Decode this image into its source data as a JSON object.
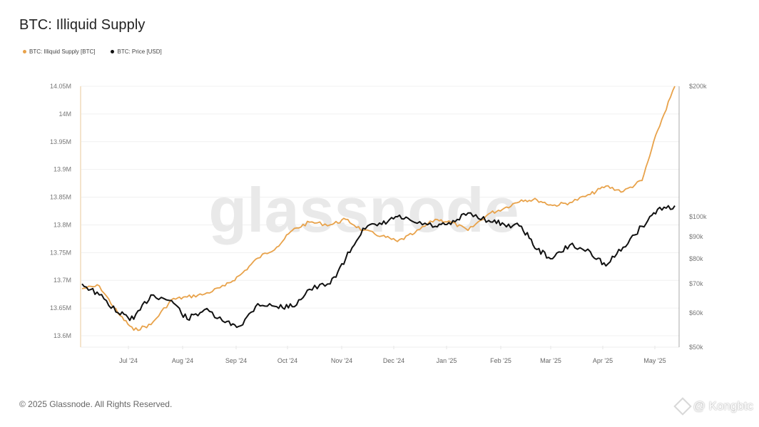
{
  "header": {
    "title": "BTC: Illiquid Supply"
  },
  "legend": [
    {
      "label": "BTC: Illiquid Supply [BTC]",
      "color": "#e8a24a"
    },
    {
      "label": "BTC: Price [USD]",
      "color": "#111111"
    }
  ],
  "footer": {
    "copyright": "© 2025 Glassnode. All Rights Reserved.",
    "watermark_corner": "@ Kongbtc"
  },
  "watermark": "glassnode",
  "chart_data": {
    "type": "line",
    "title": "BTC: Illiquid Supply",
    "xlabel": "",
    "ylabel_left": "Illiquid Supply [BTC]",
    "ylabel_right": "Price [USD]",
    "x_ticks": [
      "Jul '24",
      "Aug '24",
      "Sep '24",
      "Oct '24",
      "Nov '24",
      "Dec '24",
      "Jan '25",
      "Feb '25",
      "Mar '25",
      "Apr '25",
      "May '25"
    ],
    "y_left_ticks": [
      "13.6M",
      "13.65M",
      "13.7M",
      "13.75M",
      "13.8M",
      "13.85M",
      "13.9M",
      "13.95M",
      "14M",
      "14.05M"
    ],
    "y_left_range": [
      13.58,
      14.05
    ],
    "y_right_ticks": [
      "$50k",
      "$60k",
      "$70k",
      "$80k",
      "$90k",
      "$100k",
      "$200k"
    ],
    "y_right_scale": "log",
    "y_right_range": [
      50000,
      200000
    ],
    "grid": true,
    "legend_position": "top-left",
    "x": [
      "2024-06-10",
      "2024-06-20",
      "2024-07-01",
      "2024-07-10",
      "2024-07-20",
      "2024-08-01",
      "2024-08-10",
      "2024-08-20",
      "2024-09-01",
      "2024-09-10",
      "2024-09-20",
      "2024-10-01",
      "2024-10-10",
      "2024-10-20",
      "2024-11-01",
      "2024-11-10",
      "2024-11-20",
      "2024-12-01",
      "2024-12-10",
      "2024-12-20",
      "2025-01-01",
      "2025-01-10",
      "2025-01-20",
      "2025-02-01",
      "2025-02-10",
      "2025-02-20",
      "2025-03-01",
      "2025-03-10",
      "2025-03-20",
      "2025-04-01",
      "2025-04-10",
      "2025-04-20",
      "2025-05-01",
      "2025-05-10",
      "2025-05-20"
    ],
    "series": [
      {
        "name": "BTC: Illiquid Supply [BTC]",
        "axis": "left",
        "color": "#e8a24a",
        "values": [
          13.685,
          13.69,
          13.64,
          13.61,
          13.62,
          13.665,
          13.67,
          13.675,
          13.69,
          13.71,
          13.74,
          13.76,
          13.79,
          13.805,
          13.8,
          13.81,
          13.79,
          13.78,
          13.77,
          13.785,
          13.81,
          13.805,
          13.79,
          13.82,
          13.83,
          13.845,
          13.845,
          13.835,
          13.84,
          13.855,
          13.87,
          13.86,
          13.88,
          13.97,
          14.05
        ]
      },
      {
        "name": "BTC: Price [USD]",
        "axis": "right",
        "color": "#111111",
        "values": [
          70000,
          66000,
          60000,
          58000,
          66000,
          64000,
          58000,
          61000,
          57000,
          56000,
          63000,
          62000,
          62000,
          68000,
          70000,
          80000,
          94000,
          96000,
          100000,
          97000,
          95000,
          96000,
          102000,
          98000,
          96000,
          95000,
          84000,
          80000,
          86000,
          83000,
          77000,
          85000,
          95000,
          104000,
          106000
        ]
      }
    ]
  }
}
